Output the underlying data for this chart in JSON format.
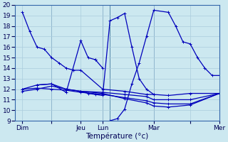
{
  "xlabel": "Température (°c)",
  "background_color": "#cce8f0",
  "grid_color": "#aaccdd",
  "line_color": "#0000bb",
  "ylim": [
    9,
    20
  ],
  "xlim": [
    0,
    28
  ],
  "day_ticks": [
    1,
    5,
    9,
    12,
    19,
    24,
    28
  ],
  "day_labels": [
    "Dim",
    "",
    "Jeu",
    "Lun",
    "Mar",
    "",
    "Mer"
  ],
  "series": [
    {
      "x": [
        1,
        2,
        3,
        4,
        5,
        6,
        7,
        8,
        9,
        12,
        15,
        18,
        19,
        21,
        24,
        28
      ],
      "y": [
        19.3,
        17.5,
        16.0,
        15.8,
        15.0,
        14.5,
        14.0,
        13.8,
        13.8,
        12.0,
        11.8,
        11.5,
        11.5,
        11.4,
        11.6,
        11.6
      ]
    },
    {
      "x": [
        1,
        3,
        5,
        7,
        9,
        12,
        15,
        18,
        19,
        21,
        24,
        28
      ],
      "y": [
        12.0,
        12.4,
        12.5,
        12.0,
        11.8,
        11.7,
        11.5,
        11.3,
        11.0,
        11.0,
        11.0,
        11.6
      ]
    },
    {
      "x": [
        1,
        3,
        5,
        7,
        9,
        12,
        15,
        18,
        19,
        21,
        24,
        28
      ],
      "y": [
        12.0,
        12.1,
        12.0,
        11.9,
        11.7,
        11.5,
        11.2,
        10.9,
        10.7,
        10.6,
        10.6,
        11.6
      ]
    },
    {
      "x": [
        1,
        3,
        5,
        7,
        9,
        12,
        15,
        18,
        19,
        21,
        24,
        28
      ],
      "y": [
        11.8,
        12.0,
        12.3,
        12.0,
        11.8,
        11.6,
        11.1,
        10.7,
        10.4,
        10.3,
        10.5,
        11.6
      ]
    },
    {
      "x": [
        3,
        5,
        7,
        9,
        10,
        11
      ],
      "y": [
        12.4,
        12.5,
        11.7,
        16.6,
        15.0,
        14.8
      ]
    },
    {
      "x": [
        11,
        12
      ],
      "y": [
        14.8,
        14.0
      ]
    },
    {
      "x": [
        9,
        10,
        11,
        12,
        13,
        14,
        15,
        16,
        17,
        18,
        19
      ],
      "y": [
        11.8,
        11.6,
        11.5,
        11.4,
        18.5,
        18.8,
        19.2,
        16.0,
        13.0,
        12.0,
        11.5
      ]
    },
    {
      "x": [
        13,
        14,
        15,
        16,
        17,
        18,
        19,
        21,
        22,
        23,
        24,
        25,
        26,
        27,
        28
      ],
      "y": [
        9.0,
        9.2,
        10.1,
        12.5,
        14.5,
        17.0,
        19.5,
        19.3,
        18.0,
        16.5,
        16.3,
        15.0,
        14.0,
        13.3,
        13.3
      ]
    }
  ],
  "vlines": [
    5,
    12,
    13,
    19,
    28
  ]
}
